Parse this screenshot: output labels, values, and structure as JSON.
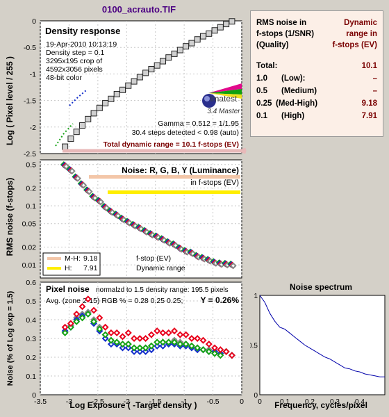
{
  "file_title": "0100_acrauto.TIF",
  "density_panel": {
    "title": "Density response",
    "info_lines": [
      "19-Apr-2010 10:13:19",
      "Density step = 0.1",
      "3295x195 crop of",
      "4592x3056 pixels",
      "48-bit color"
    ],
    "logo_text": "imatest",
    "logo_subtitle": "3.4  Master",
    "gamma_text": "Gamma = 0.512 = 1/1.95",
    "steps_text": "30.4 steps detected < 0.98 (auto)",
    "dr_banner": "Total dynamic range = 10.1 f-stops (EV)",
    "ylabel": "Log ( Pixel level / 255 )"
  },
  "rms_panel": {
    "title": "Noise: R, G, B, Y (Luminance)",
    "subtitle": "in f-stops (EV)",
    "ylabel": "RMS noise (f-stops)",
    "legend": [
      {
        "label": "M-H:",
        "value": "9.18",
        "color": "#f3c6a8"
      },
      {
        "label": "H:",
        "value": "7.91",
        "color": "#ffee00"
      }
    ],
    "legend_right_1": "f-stop (EV)",
    "legend_right_2": "Dynamic range"
  },
  "pixel_panel": {
    "title": "Pixel noise",
    "norm_text": "normalzd to 1.5 density range: 195.5 pixels",
    "avg_text": "Avg. (zone 2-15) RGB % = 0.28  0.25  0.25;",
    "y_text": "Y = 0.26%",
    "ylabel": "Noise (% of Log exp = 1.5)",
    "xlabel": "Log Exposure ( -Target density )"
  },
  "spectrum_panel": {
    "title": "Noise spectrum",
    "xlabel": "Frequency, cycles/pixel"
  },
  "rms_table": {
    "header_left": "RMS noise in f-stops (1/SNR) (Quality)",
    "header_left_lines": [
      "RMS noise in",
      "f-stops (1/SNR)",
      "(Quality)"
    ],
    "header_right_lines": [
      "Dynamic",
      "range in",
      "f-stops (EV)"
    ],
    "rows": [
      {
        "label": "Total:",
        "quality": "",
        "value": "10.1"
      },
      {
        "label": "1.0",
        "quality": "(Low):",
        "value": "–"
      },
      {
        "label": "0.5",
        "quality": "(Medium)",
        "value": "–"
      },
      {
        "label": "0.25",
        "quality": "(Med-High)",
        "value": "9.18"
      },
      {
        "label": "0.1",
        "quality": "(High)",
        "value": "7.91"
      }
    ]
  },
  "colors": {
    "red": "#e8001c",
    "green": "#15a315",
    "blue": "#1530cc",
    "gray": "#888888",
    "mh_band": "#f3c6a8",
    "h_band": "#ffee00",
    "spectrum_line": "#0000aa",
    "banner_text": "#7a0000"
  },
  "chart_data": [
    {
      "type": "scatter",
      "title": "Density response",
      "ylabel": "Log ( Pixel level / 255 )",
      "xlim": [
        -3.5,
        0
      ],
      "ylim": [
        -2.5,
        0
      ],
      "grid": true,
      "series": [
        {
          "marker": "square",
          "x": [
            -3.07,
            -2.97,
            -2.87,
            -2.77,
            -2.67,
            -2.57,
            -2.47,
            -2.37,
            -2.27,
            -2.17,
            -2.07,
            -1.97,
            -1.87,
            -1.77,
            -1.67,
            -1.57,
            -1.47,
            -1.37,
            -1.27,
            -1.17,
            -1.07,
            -0.97,
            -0.87,
            -0.77,
            -0.67,
            -0.57,
            -0.47,
            -0.37,
            -0.27,
            -0.17
          ],
          "y": [
            -2.37,
            -2.22,
            -2.09,
            -1.97,
            -1.85,
            -1.74,
            -1.64,
            -1.55,
            -1.47,
            -1.38,
            -1.3,
            -1.22,
            -1.14,
            -1.06,
            -0.98,
            -0.91,
            -0.84,
            -0.76,
            -0.69,
            -0.62,
            -0.55,
            -0.48,
            -0.42,
            -0.35,
            -0.29,
            -0.24,
            -0.18,
            -0.12,
            -0.06,
            -0.01
          ]
        }
      ]
    },
    {
      "type": "scatter",
      "title": "Noise: R, G, B, Y (Luminance)",
      "ylabel": "RMS noise (f-stops)",
      "y_scale": "log",
      "ytick_labels": [
        "0.5",
        "0.2",
        "0.1",
        "0.05",
        "0.02",
        "0.01"
      ],
      "xlim": [
        -3.5,
        0
      ],
      "ylim": [
        0.006,
        0.6
      ],
      "x": [
        -3.07,
        -2.97,
        -2.87,
        -2.77,
        -2.67,
        -2.57,
        -2.47,
        -2.37,
        -2.27,
        -2.17,
        -2.07,
        -1.97,
        -1.87,
        -1.77,
        -1.67,
        -1.57,
        -1.47,
        -1.37,
        -1.27,
        -1.17,
        -1.07,
        -0.97,
        -0.87,
        -0.77,
        -0.67,
        -0.57,
        -0.47,
        -0.37,
        -0.27,
        -0.17
      ],
      "y": [
        0.48,
        0.4,
        0.3,
        0.23,
        0.18,
        0.14,
        0.12,
        0.095,
        0.08,
        0.07,
        0.06,
        0.053,
        0.047,
        0.042,
        0.037,
        0.033,
        0.03,
        0.027,
        0.024,
        0.022,
        0.019,
        0.017,
        0.016,
        0.014,
        0.013,
        0.012,
        0.011,
        0.0105,
        0.0103,
        0.01
      ],
      "note": "R, G, B, Y series overlap; all share these approximate values"
    },
    {
      "type": "scatter",
      "title": "Pixel noise",
      "ylabel": "Noise (% of Log exp = 1.5)",
      "xlabel": "Log Exposure ( -Target density )",
      "xlim": [
        -3.5,
        0
      ],
      "ylim": [
        0,
        0.6
      ],
      "x": [
        -3.07,
        -2.97,
        -2.87,
        -2.77,
        -2.67,
        -2.57,
        -2.47,
        -2.37,
        -2.27,
        -2.17,
        -2.07,
        -1.97,
        -1.87,
        -1.77,
        -1.67,
        -1.57,
        -1.47,
        -1.37,
        -1.27,
        -1.17,
        -1.07,
        -0.97,
        -0.87,
        -0.77,
        -0.67,
        -0.57,
        -0.47,
        -0.37,
        -0.27,
        -0.17
      ],
      "series": [
        {
          "name": "R",
          "color": "#e8001c",
          "y": [
            0.36,
            0.38,
            0.43,
            0.47,
            0.51,
            0.45,
            0.41,
            0.36,
            0.33,
            0.33,
            0.31,
            0.33,
            0.3,
            0.3,
            0.3,
            0.32,
            0.34,
            0.33,
            0.33,
            0.34,
            0.32,
            0.32,
            0.3,
            0.3,
            0.29,
            0.27,
            0.25,
            0.24,
            0.23,
            0.21
          ]
        },
        {
          "name": "G",
          "color": "#15a315",
          "y": [
            0.33,
            0.36,
            0.39,
            0.41,
            0.43,
            0.39,
            0.35,
            0.32,
            0.29,
            0.28,
            0.27,
            0.27,
            0.25,
            0.25,
            0.25,
            0.26,
            0.28,
            0.28,
            0.28,
            0.28,
            0.27,
            0.27,
            0.26,
            0.25,
            0.24,
            0.23,
            0.22,
            0.21,
            0.23,
            0.21
          ]
        },
        {
          "name": "B",
          "color": "#1530cc",
          "y": [
            0.34,
            0.36,
            0.4,
            0.42,
            0.43,
            0.38,
            0.34,
            0.3,
            0.27,
            0.27,
            0.25,
            0.25,
            0.23,
            0.23,
            0.23,
            0.24,
            0.26,
            0.26,
            0.27,
            0.27,
            0.26,
            0.26,
            0.25,
            0.24,
            0.24,
            0.23,
            0.23,
            0.22,
            0.23,
            0.21
          ]
        },
        {
          "name": "Y",
          "color": "#888888",
          "y": [
            0.34,
            0.37,
            0.41,
            0.43,
            0.44,
            0.4,
            0.36,
            0.32,
            0.29,
            0.28,
            0.27,
            0.27,
            0.25,
            0.25,
            0.25,
            0.26,
            0.28,
            0.28,
            0.28,
            0.29,
            0.28,
            0.27,
            0.26,
            0.25,
            0.24,
            0.24,
            0.23,
            0.22,
            0.23,
            0.21
          ]
        }
      ]
    },
    {
      "type": "line",
      "title": "Noise spectrum",
      "xlabel": "Frequency, cycles/pixel",
      "xlim": [
        0,
        0.5
      ],
      "ylim": [
        0,
        1
      ],
      "x": [
        0,
        0.02,
        0.04,
        0.06,
        0.08,
        0.1,
        0.12,
        0.14,
        0.16,
        0.18,
        0.2,
        0.22,
        0.24,
        0.26,
        0.28,
        0.3,
        0.32,
        0.34,
        0.36,
        0.38,
        0.4,
        0.42,
        0.44,
        0.46,
        0.48,
        0.5
      ],
      "y": [
        1.0,
        0.93,
        0.82,
        0.74,
        0.68,
        0.66,
        0.62,
        0.58,
        0.54,
        0.5,
        0.47,
        0.44,
        0.41,
        0.38,
        0.36,
        0.33,
        0.3,
        0.27,
        0.26,
        0.24,
        0.23,
        0.21,
        0.2,
        0.19,
        0.18,
        0.18
      ]
    }
  ]
}
